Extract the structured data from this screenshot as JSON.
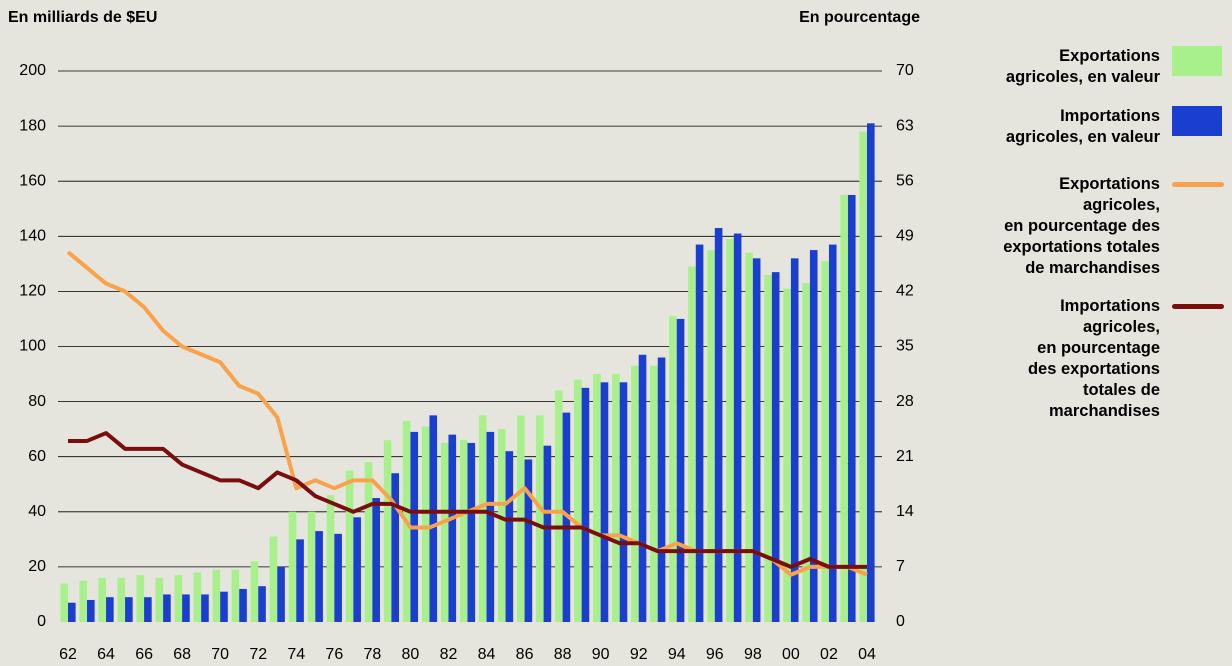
{
  "chart_data": {
    "type": "bar",
    "ylabel": "En milliards de $EU",
    "y2label": "En pourcentage",
    "categories": [
      "62",
      null,
      "64",
      null,
      "66",
      null,
      "68",
      null,
      "70",
      null,
      "72",
      null,
      "74",
      null,
      "76",
      null,
      "78",
      null,
      "80",
      null,
      "82",
      null,
      "84",
      null,
      "86",
      null,
      "88",
      null,
      "90",
      null,
      "92",
      null,
      "94",
      null,
      "96",
      null,
      "98",
      null,
      "00",
      null,
      "02",
      null,
      "04"
    ],
    "ylim": [
      0,
      200
    ],
    "yticks": [
      0,
      20,
      40,
      60,
      80,
      100,
      120,
      140,
      160,
      180,
      200
    ],
    "y2lim": [
      0,
      70
    ],
    "y2ticks": [
      0,
      7,
      14,
      21,
      28,
      35,
      42,
      49,
      56,
      63,
      70
    ],
    "grid": true,
    "legend": "right",
    "series": [
      {
        "name": "Exportations\nagricoles, en valeur",
        "type": "bar",
        "color": "#a8f08c",
        "values": [
          14,
          15,
          16,
          16,
          17,
          16,
          17,
          18,
          19,
          19,
          22,
          31,
          40,
          40,
          46,
          55,
          58,
          66,
          73,
          71,
          65,
          66,
          75,
          70,
          75,
          75,
          84,
          88,
          90,
          90,
          93,
          93,
          111,
          129,
          135,
          139,
          134,
          126,
          121,
          123,
          131,
          155,
          178
        ]
      },
      {
        "name": "Importations\nagricoles, en valeur",
        "type": "bar",
        "color": "#1a3fd0",
        "values": [
          7,
          8,
          9,
          9,
          9,
          10,
          10,
          10,
          11,
          12,
          13,
          20,
          30,
          33,
          32,
          38,
          45,
          54,
          69,
          75,
          68,
          65,
          69,
          62,
          59,
          64,
          76,
          85,
          87,
          87,
          97,
          96,
          110,
          137,
          143,
          141,
          132,
          127,
          132,
          135,
          137,
          155,
          181
        ]
      },
      {
        "name": "Exportations\nagricoles,\nen pourcentage des\nexportations totales\nde marchandises",
        "type": "line",
        "axis": "y2",
        "color": "#f9a24b",
        "values": [
          47,
          45,
          43,
          42,
          40,
          37,
          35,
          34,
          33,
          30,
          29,
          26,
          17,
          18,
          17,
          18,
          18,
          15.5,
          12,
          12,
          13,
          14,
          15,
          15,
          17,
          14,
          14,
          12,
          11,
          11,
          10,
          9,
          10,
          9,
          9,
          9,
          9,
          8,
          6,
          7,
          7,
          7,
          6
        ]
      },
      {
        "name": "Importations\nagricoles,\nen pourcentage\ndes exportations\ntotales de\nmarchandises",
        "type": "line",
        "axis": "y2",
        "color": "#7a0e0e",
        "values": [
          23,
          23,
          24,
          22,
          22,
          22,
          20,
          19,
          18,
          18,
          17,
          19,
          18,
          16,
          15,
          14,
          15,
          15,
          14,
          14,
          14,
          14,
          14,
          13,
          13,
          12,
          12,
          12,
          11,
          10,
          10,
          9,
          9,
          9,
          9,
          9,
          9,
          8,
          7,
          8,
          7,
          7,
          7
        ]
      }
    ]
  }
}
